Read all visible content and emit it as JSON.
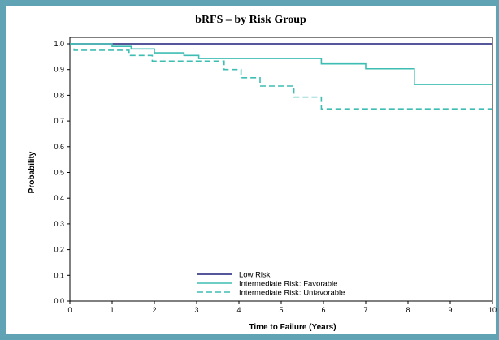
{
  "chart_data": {
    "type": "line",
    "step": true,
    "title": "bRFS – by Risk Group",
    "xlabel": "Time to Failure (Years)",
    "ylabel": "Probability",
    "xlim": [
      0,
      10
    ],
    "ylim": [
      0,
      1
    ],
    "x_ticks": [
      "0",
      "1",
      "2",
      "3",
      "4",
      "5",
      "6",
      "7",
      "8",
      "9",
      "10"
    ],
    "y_ticks": [
      "0.0",
      "0.1",
      "0.2",
      "0.3",
      "0.4",
      "0.5",
      "0.6",
      "0.7",
      "0.8",
      "0.9",
      "1.0"
    ],
    "grid": false,
    "legend_position": "bottom-left",
    "series": [
      {
        "name": "Low Risk",
        "color": "#1f1f7a",
        "dash": "solid",
        "points": [
          [
            0,
            1.0
          ],
          [
            10,
            1.0
          ]
        ]
      },
      {
        "name": "Intermediate Risk: Favorable",
        "color": "#3ebdb3",
        "dash": "solid",
        "points": [
          [
            0,
            1.0
          ],
          [
            1.0,
            0.99
          ],
          [
            1.45,
            0.98
          ],
          [
            2.0,
            0.965
          ],
          [
            2.7,
            0.955
          ],
          [
            3.05,
            0.943
          ],
          [
            5.95,
            0.922
          ],
          [
            7.0,
            0.903
          ],
          [
            8.15,
            0.842
          ],
          [
            10,
            0.842
          ]
        ]
      },
      {
        "name": "Intermediate Risk: Unfavorable",
        "color": "#3ebdb3",
        "dash": "dashed",
        "points": [
          [
            0,
            1.0
          ],
          [
            0.1,
            0.975
          ],
          [
            1.4,
            0.955
          ],
          [
            1.95,
            0.933
          ],
          [
            3.65,
            0.9
          ],
          [
            4.05,
            0.868
          ],
          [
            4.5,
            0.836
          ],
          [
            5.3,
            0.793
          ],
          [
            5.95,
            0.747
          ],
          [
            10,
            0.747
          ]
        ]
      }
    ]
  }
}
